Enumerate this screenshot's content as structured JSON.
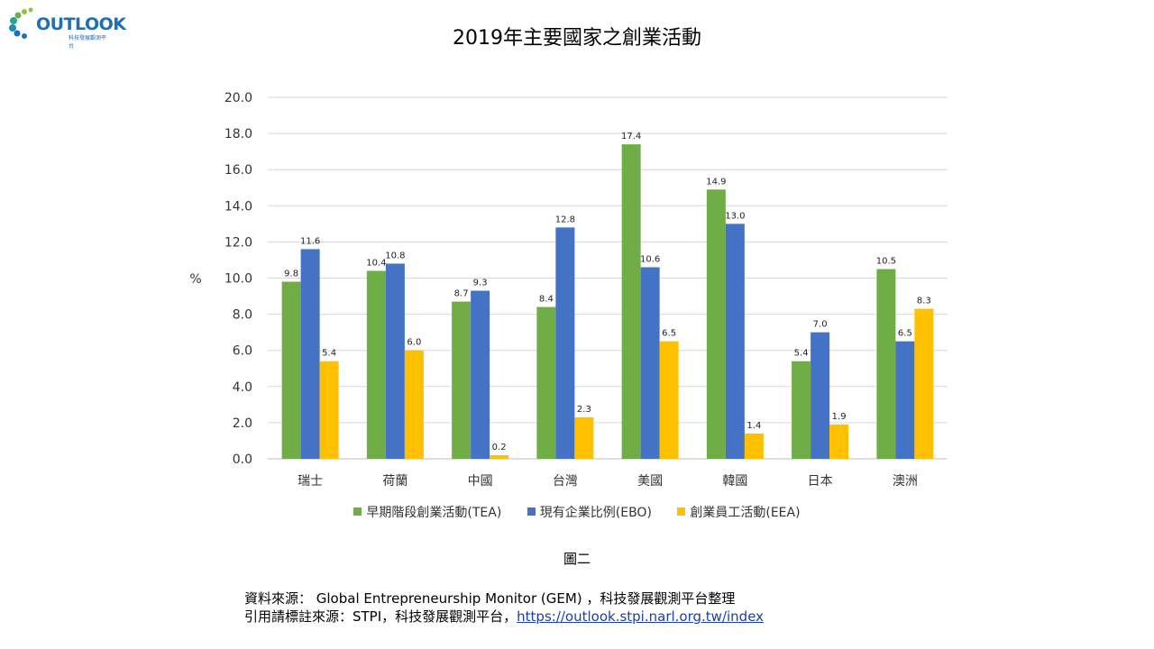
{
  "logo": {
    "text": "OUTLOOK",
    "subtext": "科技發展觀測平台"
  },
  "chart_data": {
    "type": "bar",
    "title": "2019年主要國家之創業活動",
    "xlabel": "",
    "ylabel": "%",
    "ylim": [
      0,
      20
    ],
    "ytick_step": 2,
    "yticks": [
      "0.0",
      "2.0",
      "4.0",
      "6.0",
      "8.0",
      "10.0",
      "12.0",
      "14.0",
      "16.0",
      "18.0",
      "20.0"
    ],
    "grid": true,
    "legend_position": "bottom",
    "categories": [
      "瑞士",
      "荷蘭",
      "中國",
      "台灣",
      "美國",
      "韓國",
      "日本",
      "澳洲"
    ],
    "series": [
      {
        "name": "早期階段創業活動(TEA)",
        "color": "#70ad47",
        "values": [
          9.8,
          10.4,
          8.7,
          8.4,
          17.4,
          14.9,
          5.4,
          10.5
        ]
      },
      {
        "name": "現有企業比例(EBO)",
        "color": "#4472c4",
        "values": [
          11.6,
          10.8,
          9.3,
          12.8,
          10.6,
          13.0,
          7.0,
          6.5
        ]
      },
      {
        "name": "創業員工活動(EEA)",
        "color": "#ffc000",
        "values": [
          5.4,
          6.0,
          0.2,
          2.3,
          6.5,
          1.4,
          1.9,
          8.3
        ]
      }
    ]
  },
  "figure_label": "圖二",
  "source": {
    "line1": "資料來源： Global Entrepreneurship Monitor (GEM) ，科技發展觀測平台整理",
    "line2_prefix": "引用請標註來源：STPI，科技發展觀測平台，",
    "link": "https://outlook.stpi.narl.org.tw/index"
  }
}
